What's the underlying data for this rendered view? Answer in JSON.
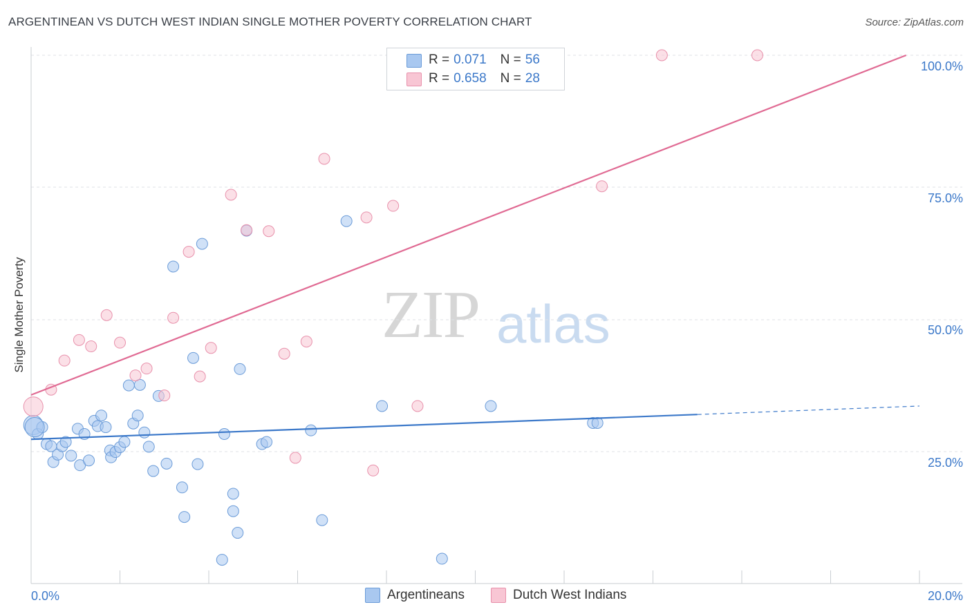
{
  "title": "ARGENTINEAN VS DUTCH WEST INDIAN SINGLE MOTHER POVERTY CORRELATION CHART",
  "source": "Source: ZipAtlas.com",
  "watermark": {
    "zip": "ZIP",
    "atlas": "atlas"
  },
  "legend": {
    "rows": [
      {
        "r_label": "R = ",
        "r_value": "0.071",
        "n_label": "N = ",
        "n_value": "56",
        "color": "#a9c8f0",
        "border": "#6a9bd8"
      },
      {
        "r_label": "R = ",
        "r_value": "0.658",
        "n_label": "N = ",
        "n_value": "28",
        "color": "#f8c6d4",
        "border": "#e890ab"
      }
    ]
  },
  "bottom_legend": [
    {
      "label": "Argentineans",
      "color": "#a9c8f0",
      "border": "#6a9bd8"
    },
    {
      "label": "Dutch West Indians",
      "color": "#f8c6d4",
      "border": "#e890ab"
    }
  ],
  "chart_data": {
    "type": "scatter",
    "title": "ARGENTINEAN VS DUTCH WEST INDIAN SINGLE MOTHER POVERTY CORRELATION CHART",
    "xlabel": "",
    "ylabel": "Single Mother Poverty",
    "xlim": [
      0,
      20
    ],
    "ylim": [
      0,
      100
    ],
    "x_tick_labels": [
      "0.0%",
      "20.0%"
    ],
    "y_tick_labels": [
      "25.0%",
      "50.0%",
      "75.0%",
      "100.0%"
    ],
    "y_ticks": [
      25,
      50,
      75,
      100
    ],
    "grid": true,
    "colors": {
      "argentineans": "#3b78c9",
      "dutch": "#e06a93",
      "axis_text": "#3b78c9"
    },
    "series": [
      {
        "name": "Argentineans",
        "color": "#a9c8f0",
        "edge": "#6a9bd8",
        "points": [
          [
            0.05,
            30.0
          ],
          [
            0.15,
            28.3
          ],
          [
            0.25,
            29.6
          ],
          [
            0.35,
            26.4
          ],
          [
            0.45,
            26.0
          ],
          [
            0.5,
            23.0
          ],
          [
            0.6,
            24.4
          ],
          [
            0.7,
            26.0
          ],
          [
            0.78,
            26.8
          ],
          [
            0.9,
            24.2
          ],
          [
            1.05,
            29.3
          ],
          [
            1.1,
            22.4
          ],
          [
            1.2,
            28.3
          ],
          [
            1.3,
            23.3
          ],
          [
            1.42,
            30.8
          ],
          [
            1.5,
            29.8
          ],
          [
            1.58,
            31.8
          ],
          [
            1.68,
            29.6
          ],
          [
            1.78,
            25.2
          ],
          [
            1.8,
            23.9
          ],
          [
            1.9,
            24.9
          ],
          [
            2.0,
            25.8
          ],
          [
            2.1,
            26.8
          ],
          [
            2.2,
            37.5
          ],
          [
            2.3,
            30.3
          ],
          [
            2.4,
            31.8
          ],
          [
            2.45,
            37.6
          ],
          [
            2.55,
            28.6
          ],
          [
            2.65,
            25.9
          ],
          [
            2.75,
            21.3
          ],
          [
            2.87,
            35.5
          ],
          [
            3.05,
            22.7
          ],
          [
            3.2,
            60.0
          ],
          [
            3.4,
            18.2
          ],
          [
            3.45,
            12.6
          ],
          [
            3.65,
            42.7
          ],
          [
            3.75,
            22.6
          ],
          [
            3.85,
            64.3
          ],
          [
            4.3,
            4.5
          ],
          [
            4.35,
            28.3
          ],
          [
            4.55,
            17.0
          ],
          [
            4.55,
            13.7
          ],
          [
            4.65,
            9.6
          ],
          [
            4.85,
            66.8
          ],
          [
            4.7,
            40.6
          ],
          [
            5.2,
            26.4
          ],
          [
            5.3,
            26.8
          ],
          [
            6.3,
            29.0
          ],
          [
            6.55,
            12.0
          ],
          [
            7.1,
            68.6
          ],
          [
            7.9,
            33.6
          ],
          [
            9.25,
            4.7
          ],
          [
            10.35,
            33.6
          ],
          [
            12.65,
            30.4
          ],
          [
            12.75,
            30.4
          ],
          [
            0.08,
            29.6
          ]
        ]
      },
      {
        "name": "Dutch West Indians",
        "color": "#f8c6d4",
        "edge": "#e890ab",
        "points": [
          [
            0.05,
            33.5
          ],
          [
            0.45,
            36.7
          ],
          [
            0.75,
            42.2
          ],
          [
            1.08,
            46.1
          ],
          [
            1.35,
            44.9
          ],
          [
            1.7,
            50.8
          ],
          [
            2.0,
            45.6
          ],
          [
            2.35,
            39.4
          ],
          [
            2.6,
            40.7
          ],
          [
            3.0,
            35.6
          ],
          [
            3.2,
            50.3
          ],
          [
            3.55,
            62.8
          ],
          [
            3.8,
            39.2
          ],
          [
            4.05,
            44.6
          ],
          [
            4.5,
            73.6
          ],
          [
            4.85,
            66.9
          ],
          [
            5.35,
            66.7
          ],
          [
            5.7,
            43.5
          ],
          [
            5.95,
            23.8
          ],
          [
            6.2,
            45.8
          ],
          [
            6.6,
            80.4
          ],
          [
            7.55,
            69.3
          ],
          [
            7.7,
            21.4
          ],
          [
            8.15,
            71.5
          ],
          [
            8.7,
            33.6
          ],
          [
            12.85,
            75.2
          ],
          [
            14.2,
            100.0
          ],
          [
            16.35,
            100.0
          ]
        ]
      }
    ],
    "trend_lines": [
      {
        "series": "Argentineans",
        "from": [
          0,
          27.3
        ],
        "to": [
          15.0,
          32.0
        ],
        "dashed_to": [
          20.0,
          33.6
        ]
      },
      {
        "series": "Dutch West Indians",
        "from": [
          0,
          35.7
        ],
        "to": [
          19.7,
          100.0
        ]
      }
    ]
  }
}
